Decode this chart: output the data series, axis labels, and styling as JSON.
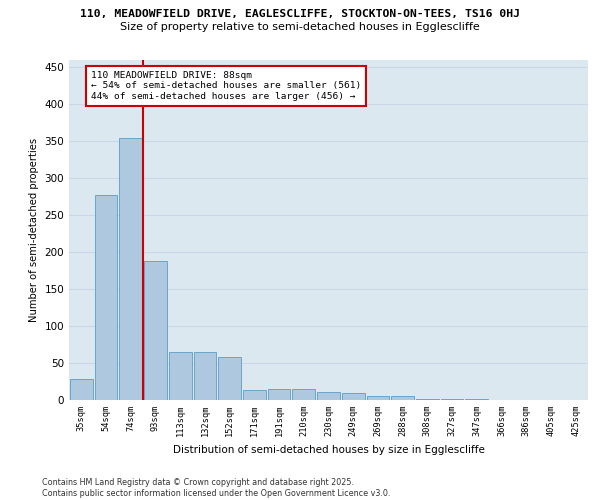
{
  "title_line1": "110, MEADOWFIELD DRIVE, EAGLESCLIFFE, STOCKTON-ON-TEES, TS16 0HJ",
  "title_line2": "Size of property relative to semi-detached houses in Egglescliffe",
  "xlabel": "Distribution of semi-detached houses by size in Egglescliffe",
  "ylabel": "Number of semi-detached properties",
  "categories": [
    "35sqm",
    "54sqm",
    "74sqm",
    "93sqm",
    "113sqm",
    "132sqm",
    "152sqm",
    "171sqm",
    "191sqm",
    "210sqm",
    "230sqm",
    "249sqm",
    "269sqm",
    "288sqm",
    "308sqm",
    "327sqm",
    "347sqm",
    "366sqm",
    "386sqm",
    "405sqm",
    "425sqm"
  ],
  "values": [
    28,
    278,
    355,
    188,
    65,
    65,
    58,
    14,
    15,
    15,
    11,
    9,
    5,
    5,
    1,
    1,
    1,
    0,
    0,
    0,
    0
  ],
  "bar_color": "#aec8e0",
  "bar_edge_color": "#5a9ec9",
  "vline_x": 2.5,
  "vline_color": "#cc0000",
  "annotation_line1": "110 MEADOWFIELD DRIVE: 88sqm",
  "annotation_line2": "← 54% of semi-detached houses are smaller (561)",
  "annotation_line3": "44% of semi-detached houses are larger (456) →",
  "annotation_box_color": "#cc0000",
  "ylim": [
    0,
    460
  ],
  "yticks": [
    0,
    50,
    100,
    150,
    200,
    250,
    300,
    350,
    400,
    450
  ],
  "grid_color": "#c8d8e8",
  "bg_color": "#dce8f0",
  "footer_line1": "Contains HM Land Registry data © Crown copyright and database right 2025.",
  "footer_line2": "Contains public sector information licensed under the Open Government Licence v3.0."
}
